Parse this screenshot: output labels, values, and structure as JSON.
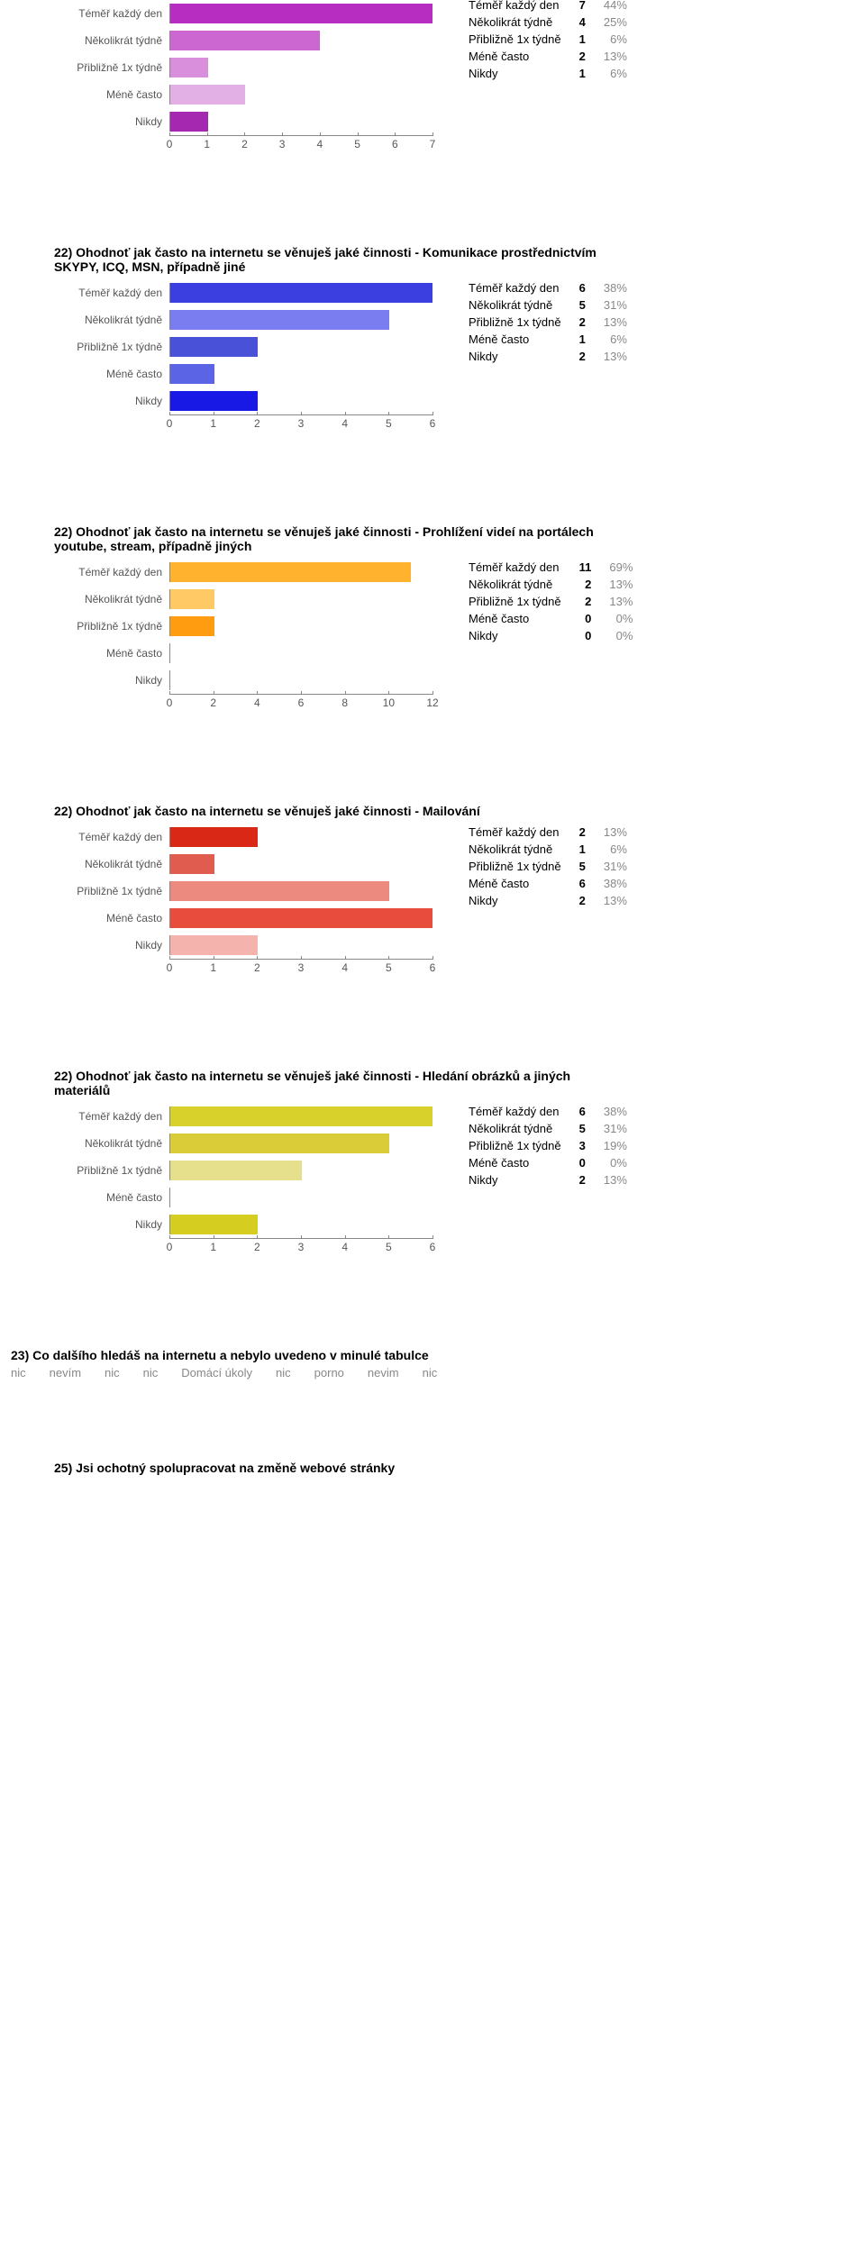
{
  "charts": [
    {
      "title": "",
      "categories": [
        "Téměř každý den",
        "Několikrát týdně",
        "Přibližně 1x týdně",
        "Méně často",
        "Nikdy"
      ],
      "values": [
        7,
        4,
        1,
        2,
        1
      ],
      "percents": [
        "44%",
        "25%",
        "6%",
        "13%",
        "6%"
      ],
      "colors": [
        "#b72dc1",
        "#cc66d1",
        "#d98fdb",
        "#e2b0e4",
        "#a429b0"
      ],
      "xmax": 7,
      "xticks": [
        0,
        1,
        2,
        3,
        4,
        5,
        6,
        7
      ],
      "label_color": "#555"
    },
    {
      "title": "22) Ohodnoť jak často na internetu se věnuješ jaké činnosti - Komunikace prostřednictvím SKYPY, ICQ, MSN, případně jiné",
      "categories": [
        "Téměř každý den",
        "Několikrát týdně",
        "Přibližně 1x týdně",
        "Méně často",
        "Nikdy"
      ],
      "values": [
        6,
        5,
        2,
        1,
        2
      ],
      "percents": [
        "38%",
        "31%",
        "13%",
        "6%",
        "13%"
      ],
      "colors": [
        "#3b3fe0",
        "#7a7df0",
        "#4a51d9",
        "#5c64e6",
        "#1919e6"
      ],
      "xmax": 6,
      "xticks": [
        0,
        1,
        2,
        3,
        4,
        5,
        6
      ],
      "label_color": "#555"
    },
    {
      "title": "22) Ohodnoť jak často na internetu se věnuješ jaké činnosti - Prohlížení videí na portálech youtube, stream, případně jiných",
      "categories": [
        "Téměř každý den",
        "Několikrát týdně",
        "Přibližně 1x týdně",
        "Méně často",
        "Nikdy"
      ],
      "values": [
        11,
        2,
        2,
        0,
        0
      ],
      "percents": [
        "69%",
        "13%",
        "13%",
        "0%",
        "0%"
      ],
      "colors": [
        "#ffb22e",
        "#ffc966",
        "#ff9c0f",
        "#ffd78a",
        "#ffe4ad"
      ],
      "xmax": 12,
      "xticks": [
        0,
        2,
        4,
        6,
        8,
        10,
        12
      ],
      "label_color": "#555"
    },
    {
      "title": "22) Ohodnoť jak často na internetu se věnuješ jaké činnosti - Mailování",
      "categories": [
        "Téměř každý den",
        "Několikrát týdně",
        "Přibližně 1x týdně",
        "Méně často",
        "Nikdy"
      ],
      "values": [
        2,
        1,
        5,
        6,
        2
      ],
      "percents": [
        "13%",
        "6%",
        "31%",
        "38%",
        "13%"
      ],
      "colors": [
        "#d92816",
        "#e05c4f",
        "#ec8a80",
        "#e84c3d",
        "#f5b3ad"
      ],
      "xmax": 6,
      "xticks": [
        0,
        1,
        2,
        3,
        4,
        5,
        6
      ],
      "label_color": "#555"
    },
    {
      "title": "22) Ohodnoť jak často na internetu se věnuješ jaké činnosti - Hledání obrázků a jiných materiálů",
      "categories": [
        "Téměř každý den",
        "Několikrát týdně",
        "Přibližně 1x týdně",
        "Méně často",
        "Nikdy"
      ],
      "values": [
        6,
        5,
        3,
        0,
        2
      ],
      "percents": [
        "38%",
        "31%",
        "19%",
        "0%",
        "13%"
      ],
      "colors": [
        "#d9d12b",
        "#d9cc38",
        "#e6e08c",
        "#eeeab3",
        "#d5cd1f"
      ],
      "xmax": 6,
      "xticks": [
        0,
        1,
        2,
        3,
        4,
        5,
        6
      ],
      "label_color": "#555"
    }
  ],
  "q23": {
    "title": "23) Co dalšího hledáš na internetu a nebylo uvedeno v minulé tabulce",
    "answers": [
      "nic",
      "nevím",
      "nic",
      "nic",
      "Domácí úkoly",
      "nic",
      "porno",
      "nevim",
      "nic"
    ]
  },
  "q25": {
    "title": "25) Jsi ochotný spolupracovat na změně webové stránky"
  }
}
